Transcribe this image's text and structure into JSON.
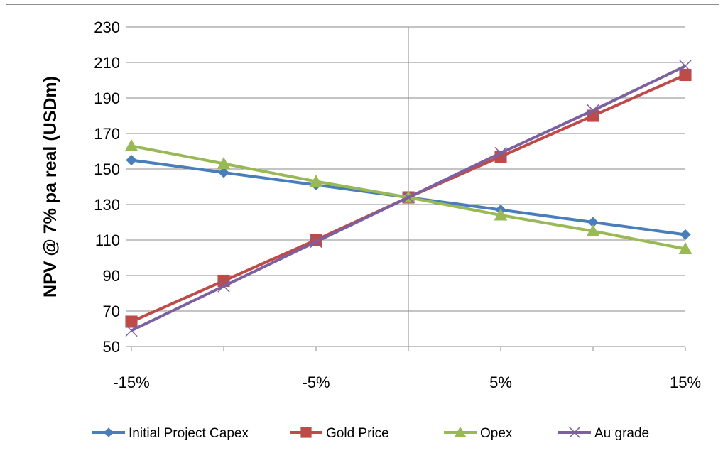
{
  "chart_data": {
    "type": "line",
    "title": "",
    "xlabel": "",
    "ylabel": "NPV @ 7% pa  real (USDm)",
    "x": [
      -15,
      -10,
      -5,
      0,
      5,
      10,
      15
    ],
    "x_tick_values": [
      -15,
      -5,
      5,
      15
    ],
    "x_tick_labels": [
      "-15%",
      "-5%",
      "5%",
      "15%"
    ],
    "xlim": [
      -15,
      15
    ],
    "ylim": [
      50,
      230
    ],
    "y_ticks": [
      50,
      70,
      90,
      110,
      130,
      150,
      170,
      190,
      210,
      230
    ],
    "grid": "horizontal",
    "legend_position": "bottom",
    "series": [
      {
        "name": "Initial Project Capex",
        "color": "#4a7ebb",
        "marker": "diamond",
        "values": [
          155,
          148,
          141,
          134,
          127,
          120,
          113
        ]
      },
      {
        "name": "Gold Price",
        "color": "#be4b48",
        "marker": "square",
        "values": [
          64,
          87,
          110,
          134,
          157,
          180,
          203
        ]
      },
      {
        "name": "Opex",
        "color": "#98b954",
        "marker": "triangle",
        "values": [
          163,
          153,
          143,
          134,
          124,
          115,
          105
        ]
      },
      {
        "name": "Au grade",
        "color": "#7d60a0",
        "marker": "x",
        "values": [
          59,
          84,
          109,
          134,
          159,
          183,
          208
        ]
      }
    ]
  }
}
